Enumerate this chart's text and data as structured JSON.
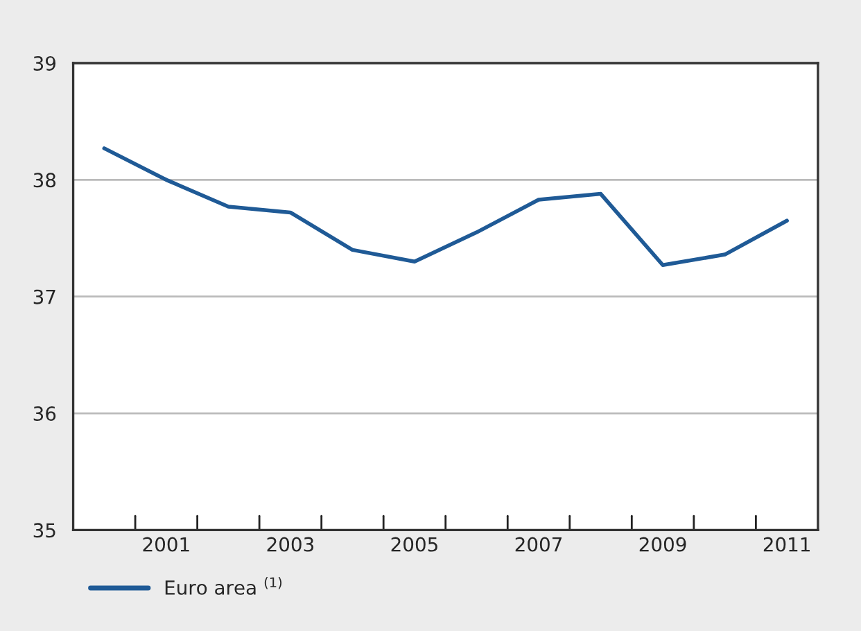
{
  "chart_data": {
    "type": "line",
    "categories": [
      null,
      "2001",
      null,
      "2003",
      null,
      "2005",
      null,
      "2007",
      null,
      "2009",
      null,
      "2011"
    ],
    "series": [
      {
        "name": "Euro area $^{(1)}$",
        "color": "#1f5a96",
        "values": [
          38.27,
          38.0,
          37.77,
          37.72,
          37.4,
          37.3,
          37.55,
          37.83,
          37.88,
          37.27,
          37.36,
          37.65
        ]
      }
    ],
    "ylim": [
      35,
      39
    ],
    "yticks": [
      35,
      36,
      37,
      38,
      39
    ],
    "grid": "y",
    "legend": "bottom left",
    "marker": "none",
    "line_style": "solid"
  }
}
